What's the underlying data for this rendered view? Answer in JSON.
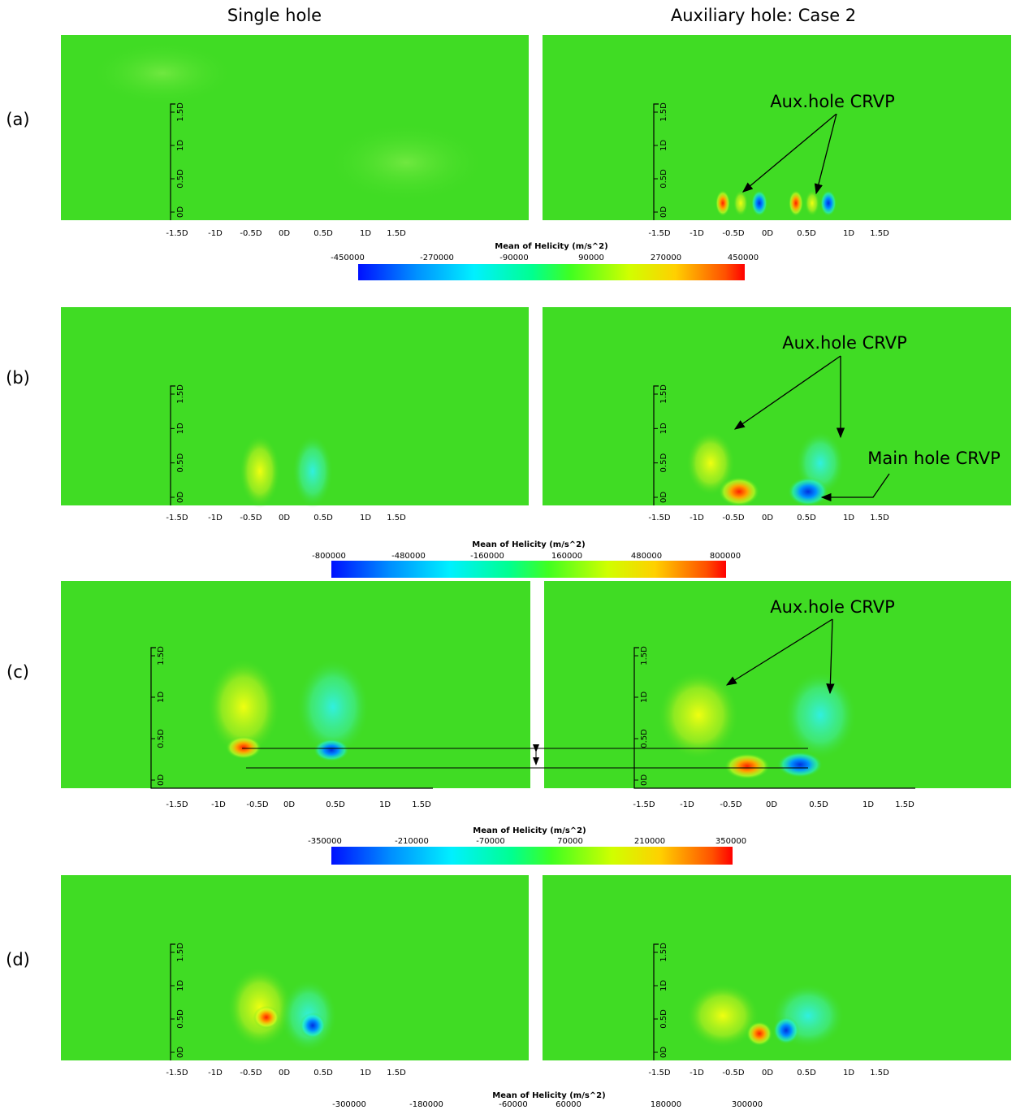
{
  "column_headers": [
    "Single hole",
    "Auxiliary hole: Case 2"
  ],
  "axis_labels": {
    "x": [
      "-1.5D",
      "-1D",
      "-0.5D",
      "0D",
      "0.5D",
      "1D",
      "1.5D"
    ],
    "y": [
      "0D",
      "0.5D",
      "1D",
      "1.5D"
    ]
  },
  "rows": [
    {
      "label": "(a)",
      "annotations": [
        "Aux.hole CRVP"
      ]
    },
    {
      "label": "(b)",
      "annotations": [
        "Aux.hole CRVP",
        "Main hole CRVP"
      ]
    },
    {
      "label": "(c)",
      "annotations": [
        "Aux.hole CRVP"
      ]
    },
    {
      "label": "(d)"
    }
  ],
  "colorbars": [
    {
      "title": "Mean of Helicity (m/s^2)",
      "ticks": [
        -450000,
        -270000,
        -90000,
        90000,
        270000,
        450000
      ]
    },
    {
      "title": "Mean of Helicity (m/s^2)",
      "ticks": [
        -800000,
        -480000,
        -160000,
        160000,
        480000,
        800000
      ]
    },
    {
      "title": "Mean of Helicity (m/s^2)",
      "ticks": [
        -350000,
        -210000,
        -70000,
        70000,
        210000,
        350000
      ]
    },
    {
      "title": "Mean of Helicity (m/s^2)",
      "ticks": [
        -300000,
        -180000,
        -60000,
        60000,
        180000,
        300000
      ]
    }
  ]
}
